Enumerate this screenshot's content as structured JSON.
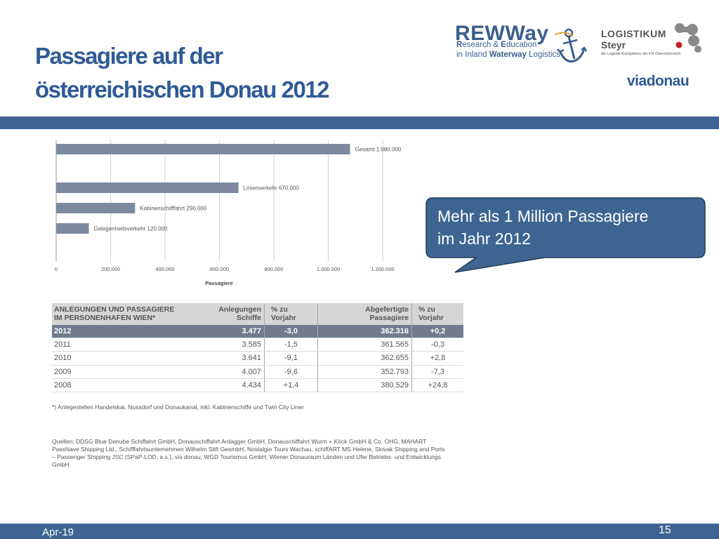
{
  "title": {
    "line1": "Passagiere auf der",
    "line2": "österreichischen Donau 2012"
  },
  "logos": {
    "rew_word": "REWWay",
    "rew_line1_a": "R",
    "rew_line1_b": "esearch & ",
    "rew_line1_c": "E",
    "rew_line1_d": "ducation",
    "rew_line2_a": "in Inland ",
    "rew_line2_b": "Waterway",
    "rew_line2_c": " Logistics",
    "log_line1": "LOGISTIKUM",
    "log_line2": "Steyr",
    "log_line3": "die Logistik-Kompetenz der FH Oberösterreich",
    "viadonau": "viadonau"
  },
  "chart_data": {
    "type": "bar",
    "orientation": "horizontal",
    "categories": [
      "Gesamt",
      "Linienverkehr",
      "Kabinenschifffahrt",
      "Gelegenheitsverkehr"
    ],
    "values": [
      1080000,
      670000,
      290000,
      120000
    ],
    "data_labels": [
      "Gesamt 1.080.000",
      "Linienverkehr 670.000",
      "Kabinenschifffahrt 290.000",
      "Gelegenheitsverkehr 120.000"
    ],
    "xlabel": "Passagiere",
    "xlim": [
      0,
      1200000
    ],
    "xticks": [
      0,
      200000,
      400000,
      600000,
      800000,
      1000000,
      1200000
    ],
    "xtick_labels": [
      "0",
      "200.000",
      "400.000",
      "600.000",
      "800.000",
      "1.000.000",
      "1.200.000"
    ],
    "grid": true,
    "bar_color": "#7d8aa0"
  },
  "callout": {
    "line1": "Mehr als 1 Million Passagiere",
    "line2": "im Jahr 2012"
  },
  "table": {
    "headers": [
      [
        "ANLEGUNGEN UND PASSAGIERE",
        "IM PERSONENHAFEN WIEN*"
      ],
      [
        "Anlegungen",
        "Schiffe"
      ],
      [
        "% zu",
        "Vorjahr"
      ],
      [
        "Abgefertigte",
        "Passagiere"
      ],
      [
        "% zu",
        "Vorjahr"
      ]
    ],
    "rows": [
      [
        "2012",
        "3.477",
        "-3,0",
        "362.316",
        "+0,2"
      ],
      [
        "2011",
        "3.585",
        "-1,5",
        "361.565",
        "-0,3"
      ],
      [
        "2010",
        "3.641",
        "-9,1",
        "362.655",
        "+2,8"
      ],
      [
        "2009",
        "4.007",
        "-9,6",
        "352.793",
        "-7,3"
      ],
      [
        "2008",
        "4.434",
        "+1,4",
        "380.529",
        "+24,8"
      ]
    ]
  },
  "footnote": "*) Anlegestellen Handelskai, Nussdorf und Donaukanal, inkl. Kabinenschiffe und Twin City Liner",
  "sources": "Quellen: DDSG Blue Danube Schiffahrt GmbH, Donauschiffahrt Ardagger GmbH, Donauschiffahrt Wurm + Köck GmbH & Co. OHG, MAHART PassNave Shipping Ltd., Schifffahrtsunternehmen Wilhelm Stift GesmbH, Nostalgie Tours Wachau, schiffART MS Helene, Slovak Shipping and Ports – Passenger Shipping JSC (SPaP-LOD, a.s.), via donau, WGD Tourismus GmbH, Wiener Donauraum Länden und Ufer Betriebs- und Entwicklungs GmbH",
  "footer": {
    "date": "Apr-19",
    "page": "15"
  },
  "colors": {
    "brand_blue": "#3e6592",
    "title_blue": "#2f5a95",
    "table_highlight": "#707c8e",
    "callout_fill": "#3e6592"
  }
}
